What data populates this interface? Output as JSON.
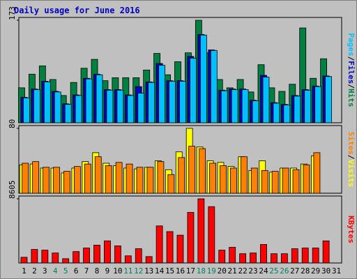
{
  "title": "Daily usage for June 2016",
  "legend_separator": "/",
  "chart_data": [
    {
      "type": "bar",
      "ylim": [
        0,
        173
      ],
      "yticks": [
        173
      ],
      "series": [
        {
          "name": "Hits",
          "color": "#008040",
          "values": [
            59,
            82,
            96,
            73,
            46,
            68,
            92,
            107,
            71,
            76,
            76,
            76,
            89,
            117,
            81,
            103,
            118,
            173,
            118,
            73,
            59,
            73,
            52,
            98,
            59,
            53,
            65,
            160,
            75,
            108,
            0
          ]
        },
        {
          "name": "Files",
          "color": "#0000c0",
          "values": [
            43,
            57,
            70,
            53,
            32,
            47,
            75,
            82,
            56,
            56,
            47,
            61,
            69,
            100,
            71,
            71,
            112,
            149,
            123,
            55,
            57,
            57,
            38,
            80,
            34,
            31,
            46,
            56,
            62,
            79,
            0
          ]
        },
        {
          "name": "Pages",
          "color": "#00c0ff",
          "values": [
            42,
            56,
            69,
            52,
            31,
            46,
            74,
            81,
            55,
            55,
            46,
            50,
            68,
            97,
            70,
            70,
            109,
            148,
            122,
            54,
            56,
            56,
            37,
            77,
            33,
            30,
            45,
            55,
            61,
            78,
            0
          ]
        }
      ]
    },
    {
      "type": "bar",
      "ylim": [
        0,
        80
      ],
      "yticks": [
        80
      ],
      "series": [
        {
          "name": "Visits",
          "color": "#ffff00",
          "values": [
            35,
            36,
            31,
            31,
            25,
            31,
            39,
            50,
            37,
            34,
            31,
            30,
            32,
            40,
            29,
            51,
            80,
            57,
            40,
            38,
            33,
            45,
            28,
            40,
            26,
            31,
            31,
            36,
            46,
            0,
            0
          ]
        },
        {
          "name": "Sites",
          "color": "#ff8000",
          "values": [
            37,
            39,
            32,
            32,
            27,
            33,
            36,
            45,
            34,
            38,
            36,
            32,
            32,
            39,
            23,
            44,
            58,
            55,
            37,
            34,
            31,
            45,
            31,
            28,
            27,
            31,
            29,
            35,
            50,
            0,
            0
          ]
        }
      ]
    },
    {
      "type": "bar",
      "ylim": [
        0,
        8605
      ],
      "yticks": [
        8605
      ],
      "categories": [
        "1",
        "2",
        "3",
        "4",
        "5",
        "6",
        "7",
        "8",
        "9",
        "10",
        "11",
        "12",
        "13",
        "14",
        "15",
        "16",
        "17",
        "18",
        "19",
        "20",
        "21",
        "22",
        "23",
        "24",
        "25",
        "26",
        "27",
        "28",
        "29",
        "30",
        "31"
      ],
      "category_colors": [
        "#000000",
        "#000000",
        "#000000",
        "#00805c",
        "#00805c",
        "#000000",
        "#000000",
        "#000000",
        "#000000",
        "#000000",
        "#00805c",
        "#00805c",
        "#000000",
        "#000000",
        "#000000",
        "#000000",
        "#000000",
        "#00805c",
        "#00805c",
        "#000000",
        "#000000",
        "#000000",
        "#000000",
        "#000000",
        "#00805c",
        "#00805c",
        "#000000",
        "#000000",
        "#000000",
        "#000000",
        "#000000"
      ],
      "series": [
        {
          "name": "KBytes",
          "color": "#ff0000",
          "values": [
            765,
            1817,
            1721,
            1339,
            574,
            1530,
            2008,
            2390,
            2964,
            2295,
            956,
            1912,
            860,
            4972,
            4207,
            3729,
            6788,
            8605,
            7553,
            1721,
            2103,
            1243,
            1339,
            2486,
            1243,
            1243,
            1912,
            2008,
            2008,
            2964,
            0
          ]
        }
      ]
    }
  ]
}
